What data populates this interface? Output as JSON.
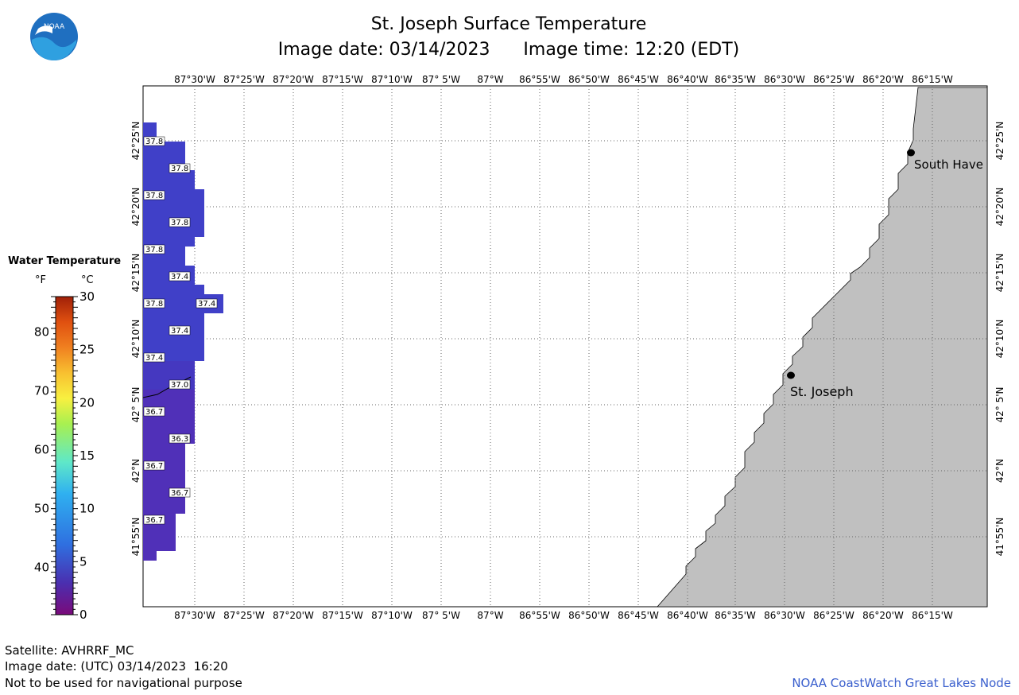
{
  "title": "St. Joseph Surface Temperature",
  "subtitle": "Image date: 03/14/2023      Image time: 12:20 (EDT)",
  "logo_text": "NOAA",
  "legend": {
    "title": "Water Temperature",
    "unit_f": "°F",
    "unit_c": "°C",
    "f_ticks": [
      "80",
      "70",
      "60",
      "50",
      "40"
    ],
    "c_ticks": [
      "30",
      "25",
      "20",
      "15",
      "10",
      "5",
      "0"
    ],
    "colors": [
      "#7a0a7a",
      "#4a2fb0",
      "#2f6fe0",
      "#2fb0f0",
      "#5fe8c8",
      "#a8f050",
      "#f8f040",
      "#f8c030",
      "#f08020",
      "#e05010",
      "#a02008"
    ]
  },
  "axes": {
    "lon_labels": [
      "87°30'W",
      "87°25'W",
      "87°20'W",
      "87°15'W",
      "87°10'W",
      "87° 5'W",
      "87°W",
      "86°55'W",
      "86°50'W",
      "86°45'W",
      "86°40'W",
      "86°35'W",
      "86°30'W",
      "86°25'W",
      "86°20'W",
      "86°15'W"
    ],
    "lat_labels": [
      "42°25'N",
      "42°20'N",
      "42°15'N",
      "42°10'N",
      "42° 5'N",
      "42°N",
      "41°55'N"
    ]
  },
  "places": [
    {
      "name": "South Have"
    },
    {
      "name": "St. Joseph"
    }
  ],
  "temperatures": [
    "37.8",
    "37.8",
    "37.8",
    "37.8",
    "37.8",
    "37.4",
    "37.8",
    "37.4",
    "37.4",
    "37.4",
    "37.0",
    "36.7",
    "36.3",
    "36.7",
    "36.7",
    "36.7"
  ],
  "footer": {
    "satellite": "Satellite: AVHRRF_MC",
    "utc_date": "Image date: (UTC) 03/14/2023  16:20",
    "disclaimer": "Not to be used for navigational purpose",
    "credit": "NOAA CoastWatch Great Lakes Node"
  },
  "colors": {
    "land": "#c0c0c0",
    "water_warm": "#4040c8",
    "water_cool": "#5030b8",
    "credit": "#3a5fcd"
  }
}
